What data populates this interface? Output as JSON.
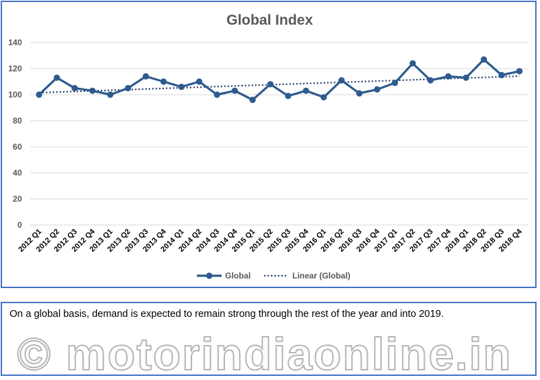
{
  "chart_data": {
    "type": "line",
    "title": "Global Index",
    "categories": [
      "2012 Q1",
      "2012 Q2",
      "2012 Q3",
      "2012 Q4",
      "2013 Q1",
      "2013 Q2",
      "2013 Q3",
      "2013 Q4",
      "2014 Q1",
      "2014 Q2",
      "2014 Q3",
      "2014 Q4",
      "2015 Q1",
      "2015 Q2",
      "2015 Q3",
      "2015 Q4",
      "2016 Q1",
      "2016 Q2",
      "2016 Q3",
      "2016 Q4",
      "2017 Q1",
      "2017 Q2",
      "2017 Q3",
      "2017 Q4",
      "2018 Q1",
      "2018 Q2",
      "2018 Q3",
      "2018 Q4"
    ],
    "series": [
      {
        "name": "Global",
        "color": "#2e5b8e",
        "values": [
          100,
          113,
          105,
          103,
          100,
          105,
          114,
          110,
          106,
          110,
          100,
          103,
          96,
          108,
          99,
          103,
          98,
          111,
          101,
          104,
          109,
          124,
          111,
          114,
          113,
          127,
          115,
          118
        ]
      }
    ],
    "trendline": {
      "name": "Linear (Global)",
      "type": "linear",
      "color": "#1f3864"
    },
    "ylim": [
      0,
      140
    ],
    "yticks": [
      0,
      20,
      40,
      60,
      80,
      100,
      120,
      140
    ],
    "grid": true,
    "legend": "bottom"
  },
  "caption": {
    "text": "On a global basis, demand is expected to remain strong through the rest of the year and into 2019.",
    "watermark": "© motorindiaonline.in"
  }
}
